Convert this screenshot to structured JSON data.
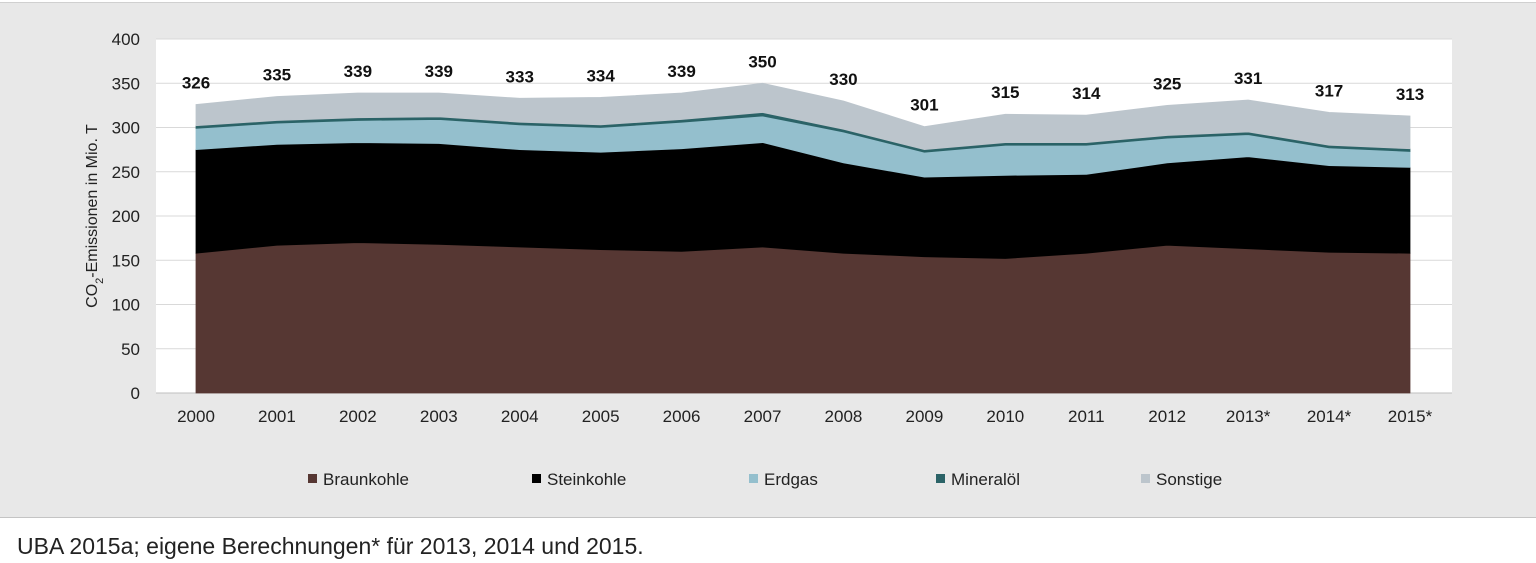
{
  "chart_data": {
    "type": "area",
    "stacked": true,
    "categories": [
      "2000",
      "2001",
      "2002",
      "2003",
      "2004",
      "2005",
      "2006",
      "2007",
      "2008",
      "2009",
      "2010",
      "2011",
      "2012",
      "2013*",
      "2014*",
      "2015*"
    ],
    "series": [
      {
        "name": "Braunkohle",
        "color": "#563733",
        "values": [
          158,
          167,
          170,
          168,
          165,
          162,
          160,
          165,
          158,
          154,
          152,
          158,
          167,
          163,
          159,
          158
        ]
      },
      {
        "name": "Steinkohle",
        "color": "#000000",
        "values": [
          117,
          114,
          113,
          114,
          110,
          110,
          116,
          118,
          102,
          90,
          94,
          89,
          93,
          104,
          98,
          97
        ]
      },
      {
        "name": "Erdgas",
        "color": "#94bfcd",
        "values": [
          24,
          24,
          25,
          27,
          28,
          28,
          30,
          30,
          35,
          28,
          34,
          33,
          28,
          25,
          20,
          18
        ]
      },
      {
        "name": "Mineralöl",
        "color": "#2b6367",
        "values": [
          3,
          3,
          3,
          3,
          3,
          3,
          3,
          4,
          3,
          3,
          3,
          3,
          3,
          3,
          3,
          3
        ]
      },
      {
        "name": "Sonstige",
        "color": "#bcc5cc",
        "values": [
          24,
          27,
          28,
          27,
          27,
          31,
          30,
          33,
          32,
          26,
          32,
          31,
          34,
          36,
          37,
          37
        ]
      }
    ],
    "totals": [
      "326",
      "335",
      "339",
      "339",
      "333",
      "334",
      "339",
      "350",
      "330",
      "301",
      "315",
      "314",
      "325",
      "331",
      "317",
      "313"
    ],
    "ylabel_parts": {
      "pre": "CO",
      "sub": "2",
      "post": "-Emissionen in Mio. T"
    },
    "yticks": [
      0,
      50,
      100,
      150,
      200,
      250,
      300,
      350,
      400
    ],
    "ylim": [
      0,
      400
    ],
    "grid": true,
    "legend_position": "bottom"
  },
  "source_note": "UBA 2015a; eigene Berechnungen* für 2013, 2014 und 2015."
}
